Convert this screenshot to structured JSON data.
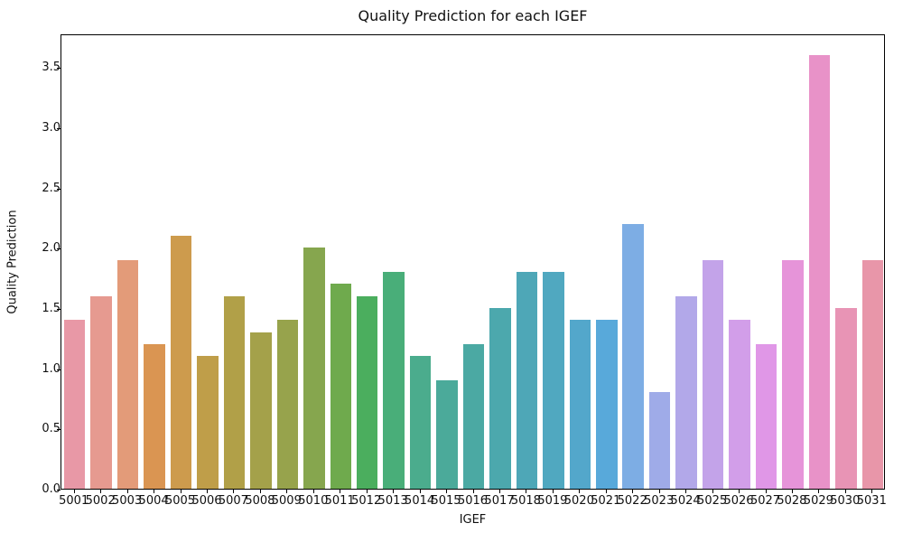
{
  "chart_data": {
    "type": "bar",
    "title": "Quality Prediction for each IGEF",
    "xlabel": "IGEF",
    "ylabel": "Quality Prediction",
    "categories": [
      "5001",
      "5002",
      "5003",
      "5004",
      "5005",
      "5006",
      "5007",
      "5008",
      "5009",
      "5010",
      "5011",
      "5012",
      "5013",
      "5014",
      "5015",
      "5016",
      "5017",
      "5018",
      "5019",
      "5020",
      "5021",
      "5022",
      "5023",
      "5024",
      "5025",
      "5026",
      "5027",
      "5028",
      "5029",
      "5030",
      "5031"
    ],
    "values": [
      1.4,
      1.6,
      1.9,
      1.2,
      2.1,
      1.1,
      1.6,
      1.3,
      1.4,
      2.0,
      1.7,
      1.6,
      1.8,
      1.1,
      0.9,
      1.2,
      1.5,
      1.8,
      1.8,
      1.4,
      1.4,
      2.2,
      0.8,
      1.6,
      1.9,
      1.4,
      1.2,
      1.9,
      3.6,
      1.5,
      1.9
    ],
    "bar_colors": [
      "#e898a6",
      "#e69a90",
      "#e39b79",
      "#da9552",
      "#cd9b4d",
      "#bf9e49",
      "#b1a048",
      "#a4a14a",
      "#97a34c",
      "#86a64e",
      "#6faa4d",
      "#4bae5e",
      "#49ae79",
      "#4bac8d",
      "#4baa9a",
      "#4ba9a3",
      "#4ca8ad",
      "#4ea7b7",
      "#50a8c0",
      "#53a7cb",
      "#58a9da",
      "#7dade4",
      "#9fabe8",
      "#b2a8e9",
      "#c3a3e9",
      "#d29ee9",
      "#e097e7",
      "#e694d9",
      "#e892c8",
      "#e894b5",
      "#e896a9"
    ],
    "ylim": [
      0,
      3.78
    ],
    "yticks": [
      "0.0",
      "0.5",
      "1.0",
      "1.5",
      "2.0",
      "2.5",
      "3.0",
      "3.5"
    ],
    "grid": false,
    "legend": "none",
    "bar_rel_width": 0.8
  }
}
